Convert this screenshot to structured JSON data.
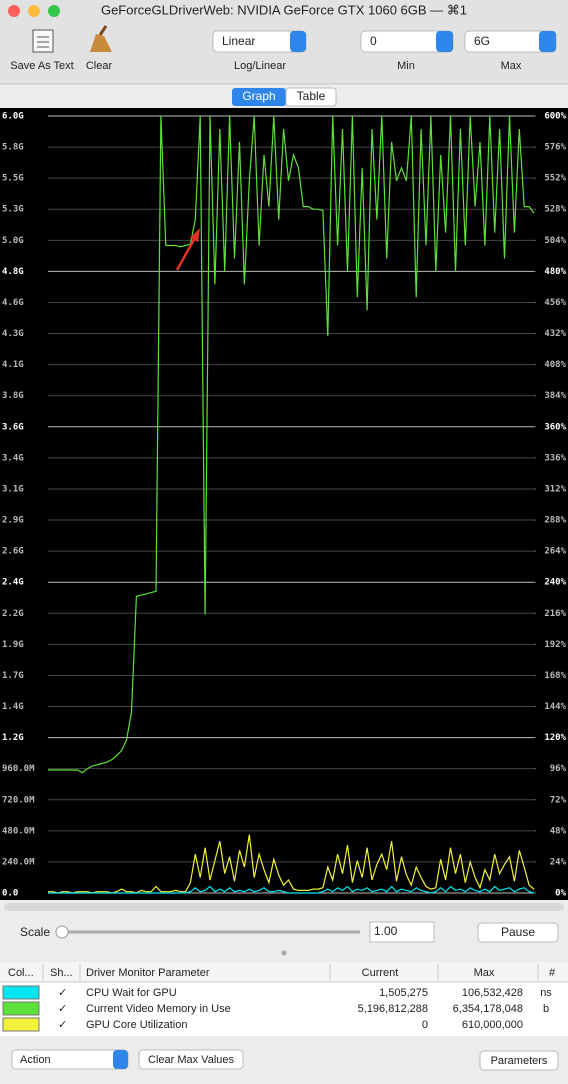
{
  "window": {
    "title": "GeForceGLDriverWeb: NVIDIA GeForce GTX 1060 6GB — ⌘1"
  },
  "toolbar": {
    "save": "Save As Text",
    "clear": "Clear",
    "scale_mode": "Linear",
    "scale_mode_label": "Log/Linear",
    "min": "0",
    "min_label": "Min",
    "max": "6G",
    "max_label": "Max"
  },
  "tabs": [
    "Graph",
    "Table"
  ],
  "chart_data": {
    "type": "line",
    "ylim": [
      0,
      6000
    ],
    "yticks": [
      {
        "value": 0,
        "label": "0.0"
      },
      {
        "value": 240,
        "label": "240.0M"
      },
      {
        "value": 480,
        "label": "480.0M"
      },
      {
        "value": 720,
        "label": "720.0M"
      },
      {
        "value": 960,
        "label": "960.0M"
      },
      {
        "value": 1200,
        "label": "1.2G"
      },
      {
        "value": 1440,
        "label": "1.4G"
      },
      {
        "value": 1680,
        "label": "1.7G"
      },
      {
        "value": 1920,
        "label": "1.9G"
      },
      {
        "value": 2160,
        "label": "2.2G"
      },
      {
        "value": 2400,
        "label": "2.4G"
      },
      {
        "value": 2640,
        "label": "2.6G"
      },
      {
        "value": 2880,
        "label": "2.9G"
      },
      {
        "value": 3120,
        "label": "3.1G"
      },
      {
        "value": 3360,
        "label": "3.4G"
      },
      {
        "value": 3600,
        "label": "3.6G"
      },
      {
        "value": 3840,
        "label": "3.8G"
      },
      {
        "value": 4080,
        "label": "4.1G"
      },
      {
        "value": 4320,
        "label": "4.3G"
      },
      {
        "value": 4560,
        "label": "4.6G"
      },
      {
        "value": 4800,
        "label": "4.8G"
      },
      {
        "value": 5040,
        "label": "5.0G"
      },
      {
        "value": 5280,
        "label": "5.3G"
      },
      {
        "value": 5520,
        "label": "5.5G"
      },
      {
        "value": 5760,
        "label": "5.8G"
      },
      {
        "value": 6000,
        "label": "6.0G"
      }
    ],
    "y2lim": [
      0,
      600
    ],
    "y2ticks": [
      {
        "value": 0,
        "label": "0%"
      },
      {
        "value": 24,
        "label": "24%"
      },
      {
        "value": 48,
        "label": "48%"
      },
      {
        "value": 72,
        "label": "72%"
      },
      {
        "value": 96,
        "label": "96%"
      },
      {
        "value": 120,
        "label": "120%"
      },
      {
        "value": 144,
        "label": "144%"
      },
      {
        "value": 168,
        "label": "168%"
      },
      {
        "value": 192,
        "label": "192%"
      },
      {
        "value": 216,
        "label": "216%"
      },
      {
        "value": 240,
        "label": "240%"
      },
      {
        "value": 264,
        "label": "264%"
      },
      {
        "value": 288,
        "label": "288%"
      },
      {
        "value": 312,
        "label": "312%"
      },
      {
        "value": 336,
        "label": "336%"
      },
      {
        "value": 360,
        "label": "360%"
      },
      {
        "value": 384,
        "label": "384%"
      },
      {
        "value": 408,
        "label": "408%"
      },
      {
        "value": 432,
        "label": "432%"
      },
      {
        "value": 456,
        "label": "456%"
      },
      {
        "value": 480,
        "label": "480%"
      },
      {
        "value": 504,
        "label": "504%"
      },
      {
        "value": 528,
        "label": "528%"
      },
      {
        "value": 552,
        "label": "552%"
      },
      {
        "value": 576,
        "label": "576%"
      },
      {
        "value": 600,
        "label": "600%"
      }
    ],
    "grid": true,
    "series": [
      {
        "name": "GPU Core Utilization",
        "color": "#f2f23a",
        "axis": "y2",
        "values": [
          1,
          1,
          0,
          1,
          1,
          0,
          1,
          1,
          1,
          0,
          1,
          1,
          1,
          0,
          1,
          3,
          1,
          1,
          0,
          2,
          1,
          1,
          5,
          1,
          1,
          1,
          2,
          1,
          1,
          8,
          30,
          12,
          35,
          10,
          25,
          40,
          15,
          28,
          9,
          33,
          20,
          45,
          12,
          30,
          18,
          8,
          26,
          14,
          6,
          10,
          3,
          2,
          2,
          2,
          3,
          3,
          4,
          20,
          10,
          30,
          15,
          37,
          8,
          25,
          12,
          35,
          10,
          22,
          30,
          18,
          40,
          9,
          28,
          14,
          6,
          20,
          12,
          5,
          3,
          4,
          26,
          10,
          35,
          15,
          30,
          8,
          24,
          12,
          4,
          18,
          10,
          30,
          15,
          22,
          28,
          9,
          33,
          20,
          6,
          3
        ]
      },
      {
        "name": "CPU Wait for GPU",
        "color": "#00e5ef",
        "axis": "y2",
        "values": [
          0,
          0,
          0,
          0,
          0,
          0,
          0,
          0,
          0,
          0,
          0,
          0,
          0,
          0,
          0,
          0,
          0,
          0,
          0,
          0,
          0,
          0,
          0,
          0,
          0,
          0,
          0,
          0,
          0,
          1,
          4,
          1,
          2,
          5,
          1,
          3,
          1,
          4,
          1,
          2,
          1,
          3,
          1,
          2,
          4,
          1,
          1,
          2,
          1,
          0,
          0,
          0,
          0,
          0,
          0,
          0,
          1,
          3,
          1,
          4,
          2,
          5,
          1,
          3,
          2,
          4,
          1,
          2,
          3,
          1,
          5,
          1,
          3,
          2,
          1,
          4,
          2,
          1,
          0,
          1,
          4,
          1,
          5,
          2,
          3,
          1,
          4,
          2,
          1,
          3,
          1,
          5,
          2,
          3,
          4,
          1,
          3,
          4,
          1,
          0
        ]
      },
      {
        "name": "Current Video Memory in Use",
        "color": "#5ee03a",
        "values": [
          950,
          950,
          950,
          950,
          950,
          950,
          950,
          930,
          960,
          980,
          990,
          1000,
          1010,
          1030,
          1060,
          1100,
          1180,
          1400,
          2290,
          2300,
          2310,
          2320,
          2330,
          6000,
          5000,
          5000,
          5000,
          4990,
          5000,
          5010,
          5200,
          6000,
          2150,
          6000,
          4700,
          5900,
          4800,
          6000,
          4900,
          5800,
          4700,
          5500,
          6000,
          5000,
          5700,
          5300,
          6000,
          5200,
          5900,
          5500,
          5700,
          5600,
          5300,
          5300,
          5280,
          5280,
          5270,
          4300,
          6000,
          5000,
          5900,
          4800,
          6000,
          4600,
          5600,
          4500,
          5900,
          5200,
          6000,
          4900,
          5800,
          5500,
          5600,
          5500,
          6000,
          4600,
          5900,
          5000,
          6000,
          4800,
          5700,
          5100,
          6000,
          4800,
          5900,
          5000,
          6000,
          5300,
          5800,
          5000,
          6000,
          5100,
          5900,
          4900,
          6000,
          5100,
          5900,
          5300,
          5300,
          5250
        ]
      }
    ]
  },
  "controls": {
    "scale_label": "Scale",
    "scale_value": "1.00",
    "pause": "Pause"
  },
  "table": {
    "headers": [
      "Col...",
      "Sh...",
      "Driver Monitor Parameter",
      "Current",
      "Max",
      "#"
    ],
    "rows": [
      {
        "color": "#00e5ef",
        "shown": "✓",
        "name": "CPU Wait for GPU",
        "current": "1,505,275",
        "max": "106,532,428",
        "unit": "ns"
      },
      {
        "color": "#5ee03a",
        "shown": "✓",
        "name": "Current Video Memory in Use",
        "current": "5,196,812,288",
        "max": "6,354,178,048",
        "unit": "b"
      },
      {
        "color": "#f2f23a",
        "shown": "✓",
        "name": "GPU Core Utilization",
        "current": "0",
        "max": "610,000,000"
      }
    ]
  },
  "footer": {
    "action": "Action",
    "clear_max": "Clear Max Values",
    "parameters": "Parameters"
  }
}
